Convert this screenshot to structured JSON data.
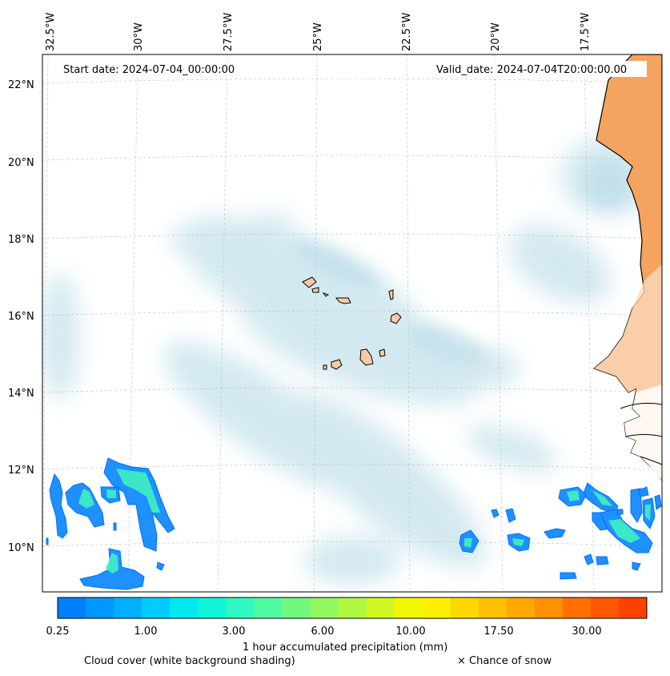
{
  "header": {
    "start_date": "Start date: 2024-07-04_00:00:00",
    "valid_date": "Valid_date: 2024-07-04T20:00:00.00"
  },
  "axes": {
    "lon_labels": [
      "32.5°W",
      "30°W",
      "27.5°W",
      "25°W",
      "22.5°W",
      "20°W",
      "17.5°W"
    ],
    "lat_labels": [
      "22°N",
      "20°N",
      "18°N",
      "16°N",
      "14°N",
      "12°N",
      "10°N"
    ]
  },
  "colorbar": {
    "title": "1 hour accumulated precipitation (mm)",
    "tick_labels": [
      "0.25",
      "1.00",
      "3.00",
      "6.00",
      "10.00",
      "17.50",
      "30.00"
    ],
    "colors": [
      "#0080ff",
      "#0096ff",
      "#00b0ff",
      "#00ccff",
      "#00e8f0",
      "#10f4d8",
      "#30f8c0",
      "#50f8a0",
      "#70f880",
      "#90f860",
      "#b0f840",
      "#d0f820",
      "#f0f800",
      "#fff000",
      "#ffd800",
      "#ffc000",
      "#ffa800",
      "#ff9000",
      "#ff7000",
      "#ff5800",
      "#ff4000"
    ]
  },
  "legend": {
    "cloud_cover": "Cloud cover (white background shading)",
    "snow": "× Chance of snow"
  },
  "style": {
    "land_color": "#f4a460",
    "cloud_color": "#cde6ee",
    "precip_light": "#1e90ff",
    "precip_heavy": "#40f0c0",
    "island_color": "#f6c9a8"
  }
}
